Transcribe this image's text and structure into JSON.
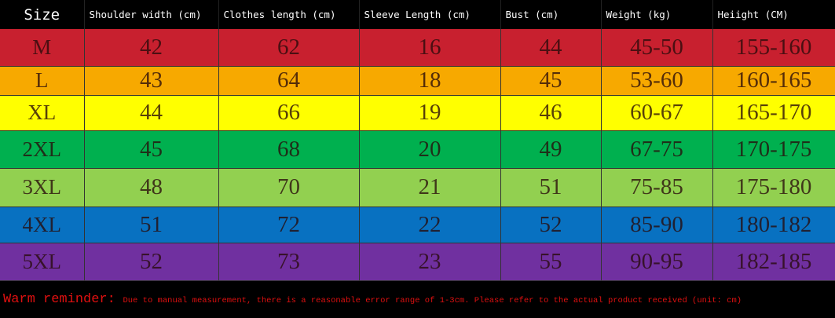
{
  "headers": [
    "Size",
    "Shoulder width (cm)",
    "Clothes length (cm)",
    "Sleeve Length (cm)",
    "Bust (cm)",
    "Weight (kg)",
    "Heiight (CM)"
  ],
  "rows": [
    {
      "color": "#c8202f",
      "cells": [
        "M",
        "42",
        "62",
        "16",
        "44",
        "45-50",
        "155-160"
      ]
    },
    {
      "color": "#f7a900",
      "cells": [
        "L",
        "43",
        "64",
        "18",
        "45",
        "53-60",
        "160-165"
      ]
    },
    {
      "color": "#ffff00",
      "cells": [
        "XL",
        "44",
        "66",
        "19",
        "46",
        "60-67",
        "165-170"
      ]
    },
    {
      "color": "#00b04f",
      "cells": [
        "2XL",
        "45",
        "68",
        "20",
        "49",
        "67-75",
        "170-175"
      ]
    },
    {
      "color": "#92d050",
      "cells": [
        "3XL",
        "48",
        "70",
        "21",
        "51",
        "75-85",
        "175-180"
      ]
    },
    {
      "color": "#0871c1",
      "cells": [
        "4XL",
        "51",
        "72",
        "22",
        "52",
        "85-90",
        "180-182"
      ]
    },
    {
      "color": "#7030a0",
      "cells": [
        "5XL",
        "52",
        "73",
        "23",
        "55",
        "90-95",
        "182-185"
      ]
    }
  ],
  "note": {
    "lead": "Warm reminder:",
    "text": "Due to manual measurement, there is a reasonable error range of 1-3cm. Please refer to the actual product received (unit: cm)"
  }
}
